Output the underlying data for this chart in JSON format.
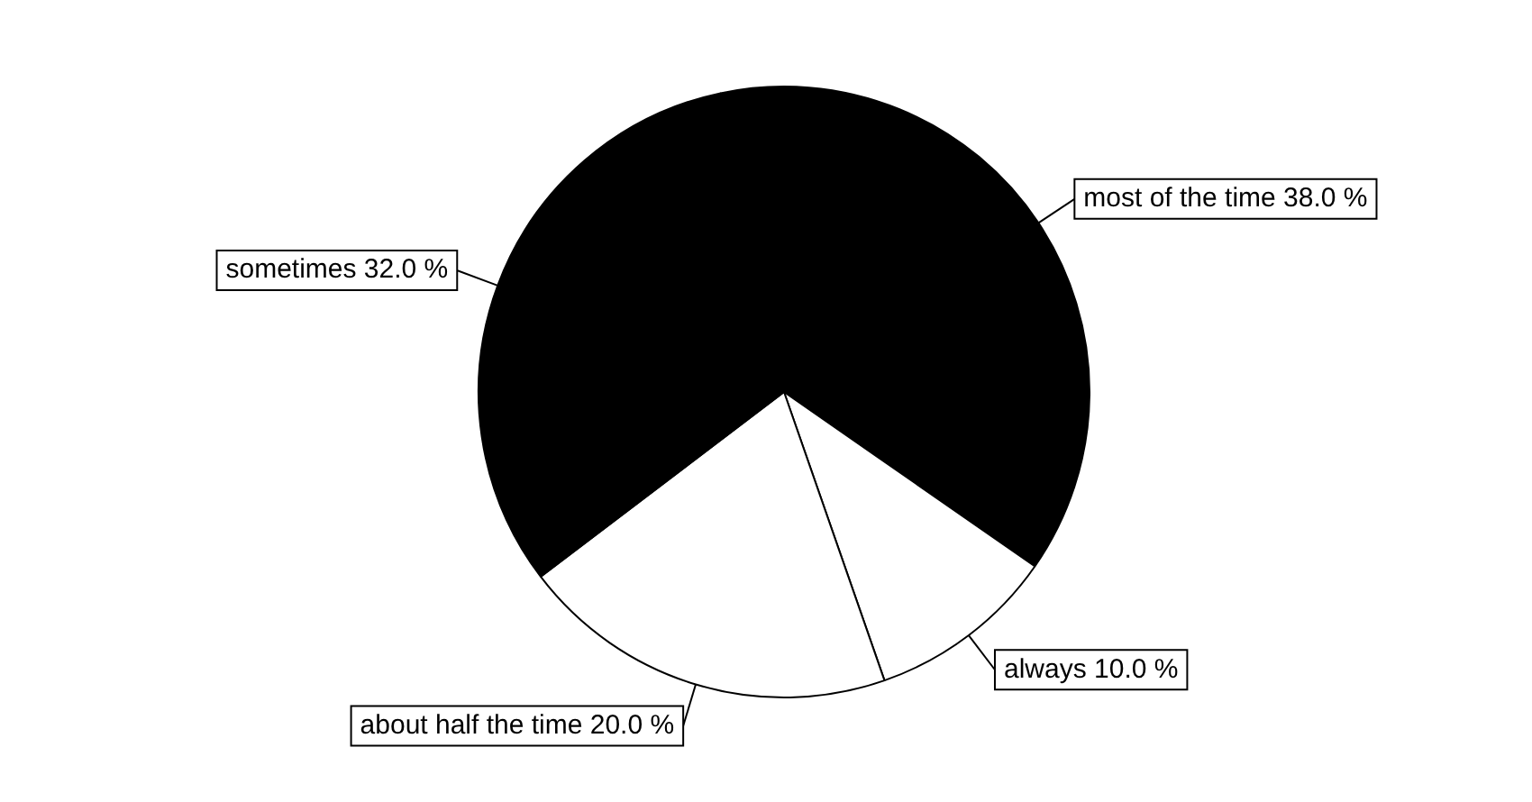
{
  "chart_data": {
    "type": "pie",
    "categories": [
      "most of the time",
      "always",
      "about half the time",
      "sometimes"
    ],
    "values": [
      38,
      10,
      20,
      32
    ],
    "value_labels": [
      "38.0 %",
      "10.0 %",
      "20.0 %",
      "32.0 %"
    ],
    "colors": [
      "#000000",
      "#ffffff",
      "#ffffff",
      "#000000"
    ]
  }
}
